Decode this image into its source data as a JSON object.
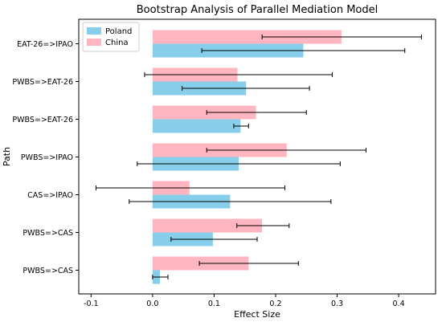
{
  "chart_data": {
    "type": "bar",
    "orientation": "horizontal",
    "title": "Bootstrap Analysis of Parallel Mediation Model",
    "xlabel": "Effect Size",
    "ylabel": "Path",
    "xlim": [
      -0.12,
      0.46
    ],
    "xticks": [
      "-0.1",
      "0.0",
      "0.1",
      "0.2",
      "0.3",
      "0.4"
    ],
    "xtick_values": [
      -0.1,
      0.0,
      0.1,
      0.2,
      0.3,
      0.4
    ],
    "categories": [
      "EAT-26=>IPAO",
      "PWBS=>EAT-26",
      "PWBS=>EAT-26",
      "PWBS=>IPAO",
      "CAS=>IPAO",
      "PWBS=>CAS",
      "PWBS=>CAS"
    ],
    "series": [
      {
        "name": "Poland",
        "color": "#87CEEB",
        "values": [
          0.245,
          0.152,
          0.143,
          0.14,
          0.126,
          0.098,
          0.012
        ],
        "ci_low": [
          0.08,
          0.048,
          0.132,
          -0.025,
          -0.038,
          0.03,
          0.0
        ],
        "ci_high": [
          0.41,
          0.255,
          0.156,
          0.305,
          0.29,
          0.17,
          0.025
        ]
      },
      {
        "name": "China",
        "color": "#FFB6C1",
        "values": [
          0.307,
          0.138,
          0.168,
          0.218,
          0.06,
          0.178,
          0.156
        ],
        "ci_low": [
          0.178,
          -0.013,
          0.088,
          0.088,
          -0.092,
          0.137,
          0.076
        ],
        "ci_high": [
          0.437,
          0.292,
          0.25,
          0.347,
          0.215,
          0.222,
          0.237
        ]
      }
    ],
    "legend_position": "top-left",
    "grid": false
  }
}
